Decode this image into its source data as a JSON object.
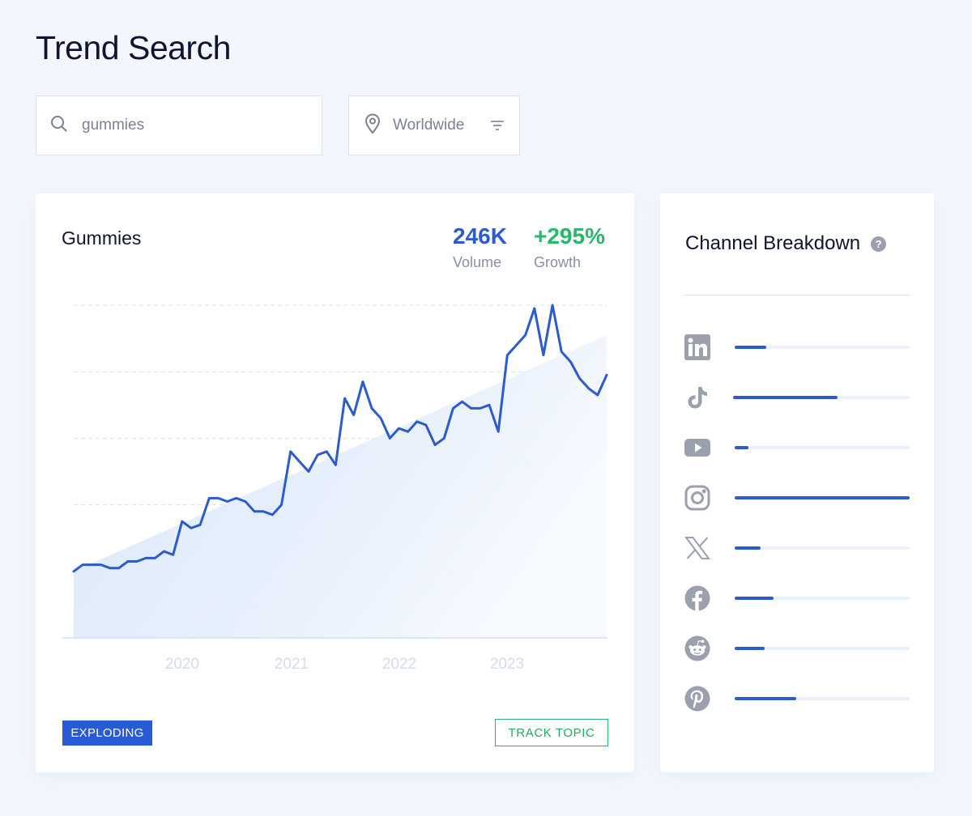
{
  "page": {
    "title": "Trend Search"
  },
  "search": {
    "value": "gummies"
  },
  "location": {
    "label": "Worldwide"
  },
  "trend": {
    "topic": "Gummies",
    "volume": {
      "value": "246K",
      "label": "Volume"
    },
    "growth": {
      "value": "+295%",
      "label": "Growth"
    },
    "status_badge": "EXPLODING",
    "track_label": "TRACK TOPIC"
  },
  "chart_data": {
    "type": "line",
    "x_tick_labels": [
      "2020",
      "2021",
      "2022",
      "2023"
    ],
    "series": [
      {
        "values": [
          0.2,
          0.22,
          0.22,
          0.22,
          0.21,
          0.21,
          0.23,
          0.23,
          0.24,
          0.24,
          0.26,
          0.25,
          0.35,
          0.33,
          0.34,
          0.42,
          0.42,
          0.41,
          0.42,
          0.41,
          0.38,
          0.38,
          0.37,
          0.4,
          0.56,
          0.53,
          0.5,
          0.55,
          0.56,
          0.52,
          0.72,
          0.67,
          0.77,
          0.69,
          0.66,
          0.6,
          0.63,
          0.62,
          0.65,
          0.64,
          0.58,
          0.6,
          0.69,
          0.71,
          0.69,
          0.69,
          0.7,
          0.62,
          0.85,
          0.88,
          0.91,
          0.99,
          0.85,
          1.0,
          0.86,
          0.83,
          0.78,
          0.75,
          0.73,
          0.79
        ]
      }
    ],
    "trendline": [
      0.2,
      0.91
    ],
    "ylim": [
      0,
      1.0
    ],
    "grid": true,
    "line_color": "#2c5ccb"
  },
  "channels": {
    "title": "Channel Breakdown",
    "help_label": "?",
    "items": [
      {
        "name": "LinkedIn",
        "icon": "linkedin-icon",
        "share": 0.18
      },
      {
        "name": "TikTok",
        "icon": "tiktok-icon",
        "share": 0.59
      },
      {
        "name": "YouTube",
        "icon": "youtube-icon",
        "share": 0.08
      },
      {
        "name": "Instagram",
        "icon": "instagram-icon",
        "share": 1.0
      },
      {
        "name": "X",
        "icon": "x-icon",
        "share": 0.15
      },
      {
        "name": "Facebook",
        "icon": "facebook-icon",
        "share": 0.22
      },
      {
        "name": "Reddit",
        "icon": "reddit-icon",
        "share": 0.17
      },
      {
        "name": "Pinterest",
        "icon": "pinterest-icon",
        "share": 0.35
      }
    ]
  },
  "colors": {
    "accent": "#2c5ccb",
    "growth": "#27b86a",
    "badge": "#2a5bd7",
    "icon_gray": "#9aa0ad"
  }
}
